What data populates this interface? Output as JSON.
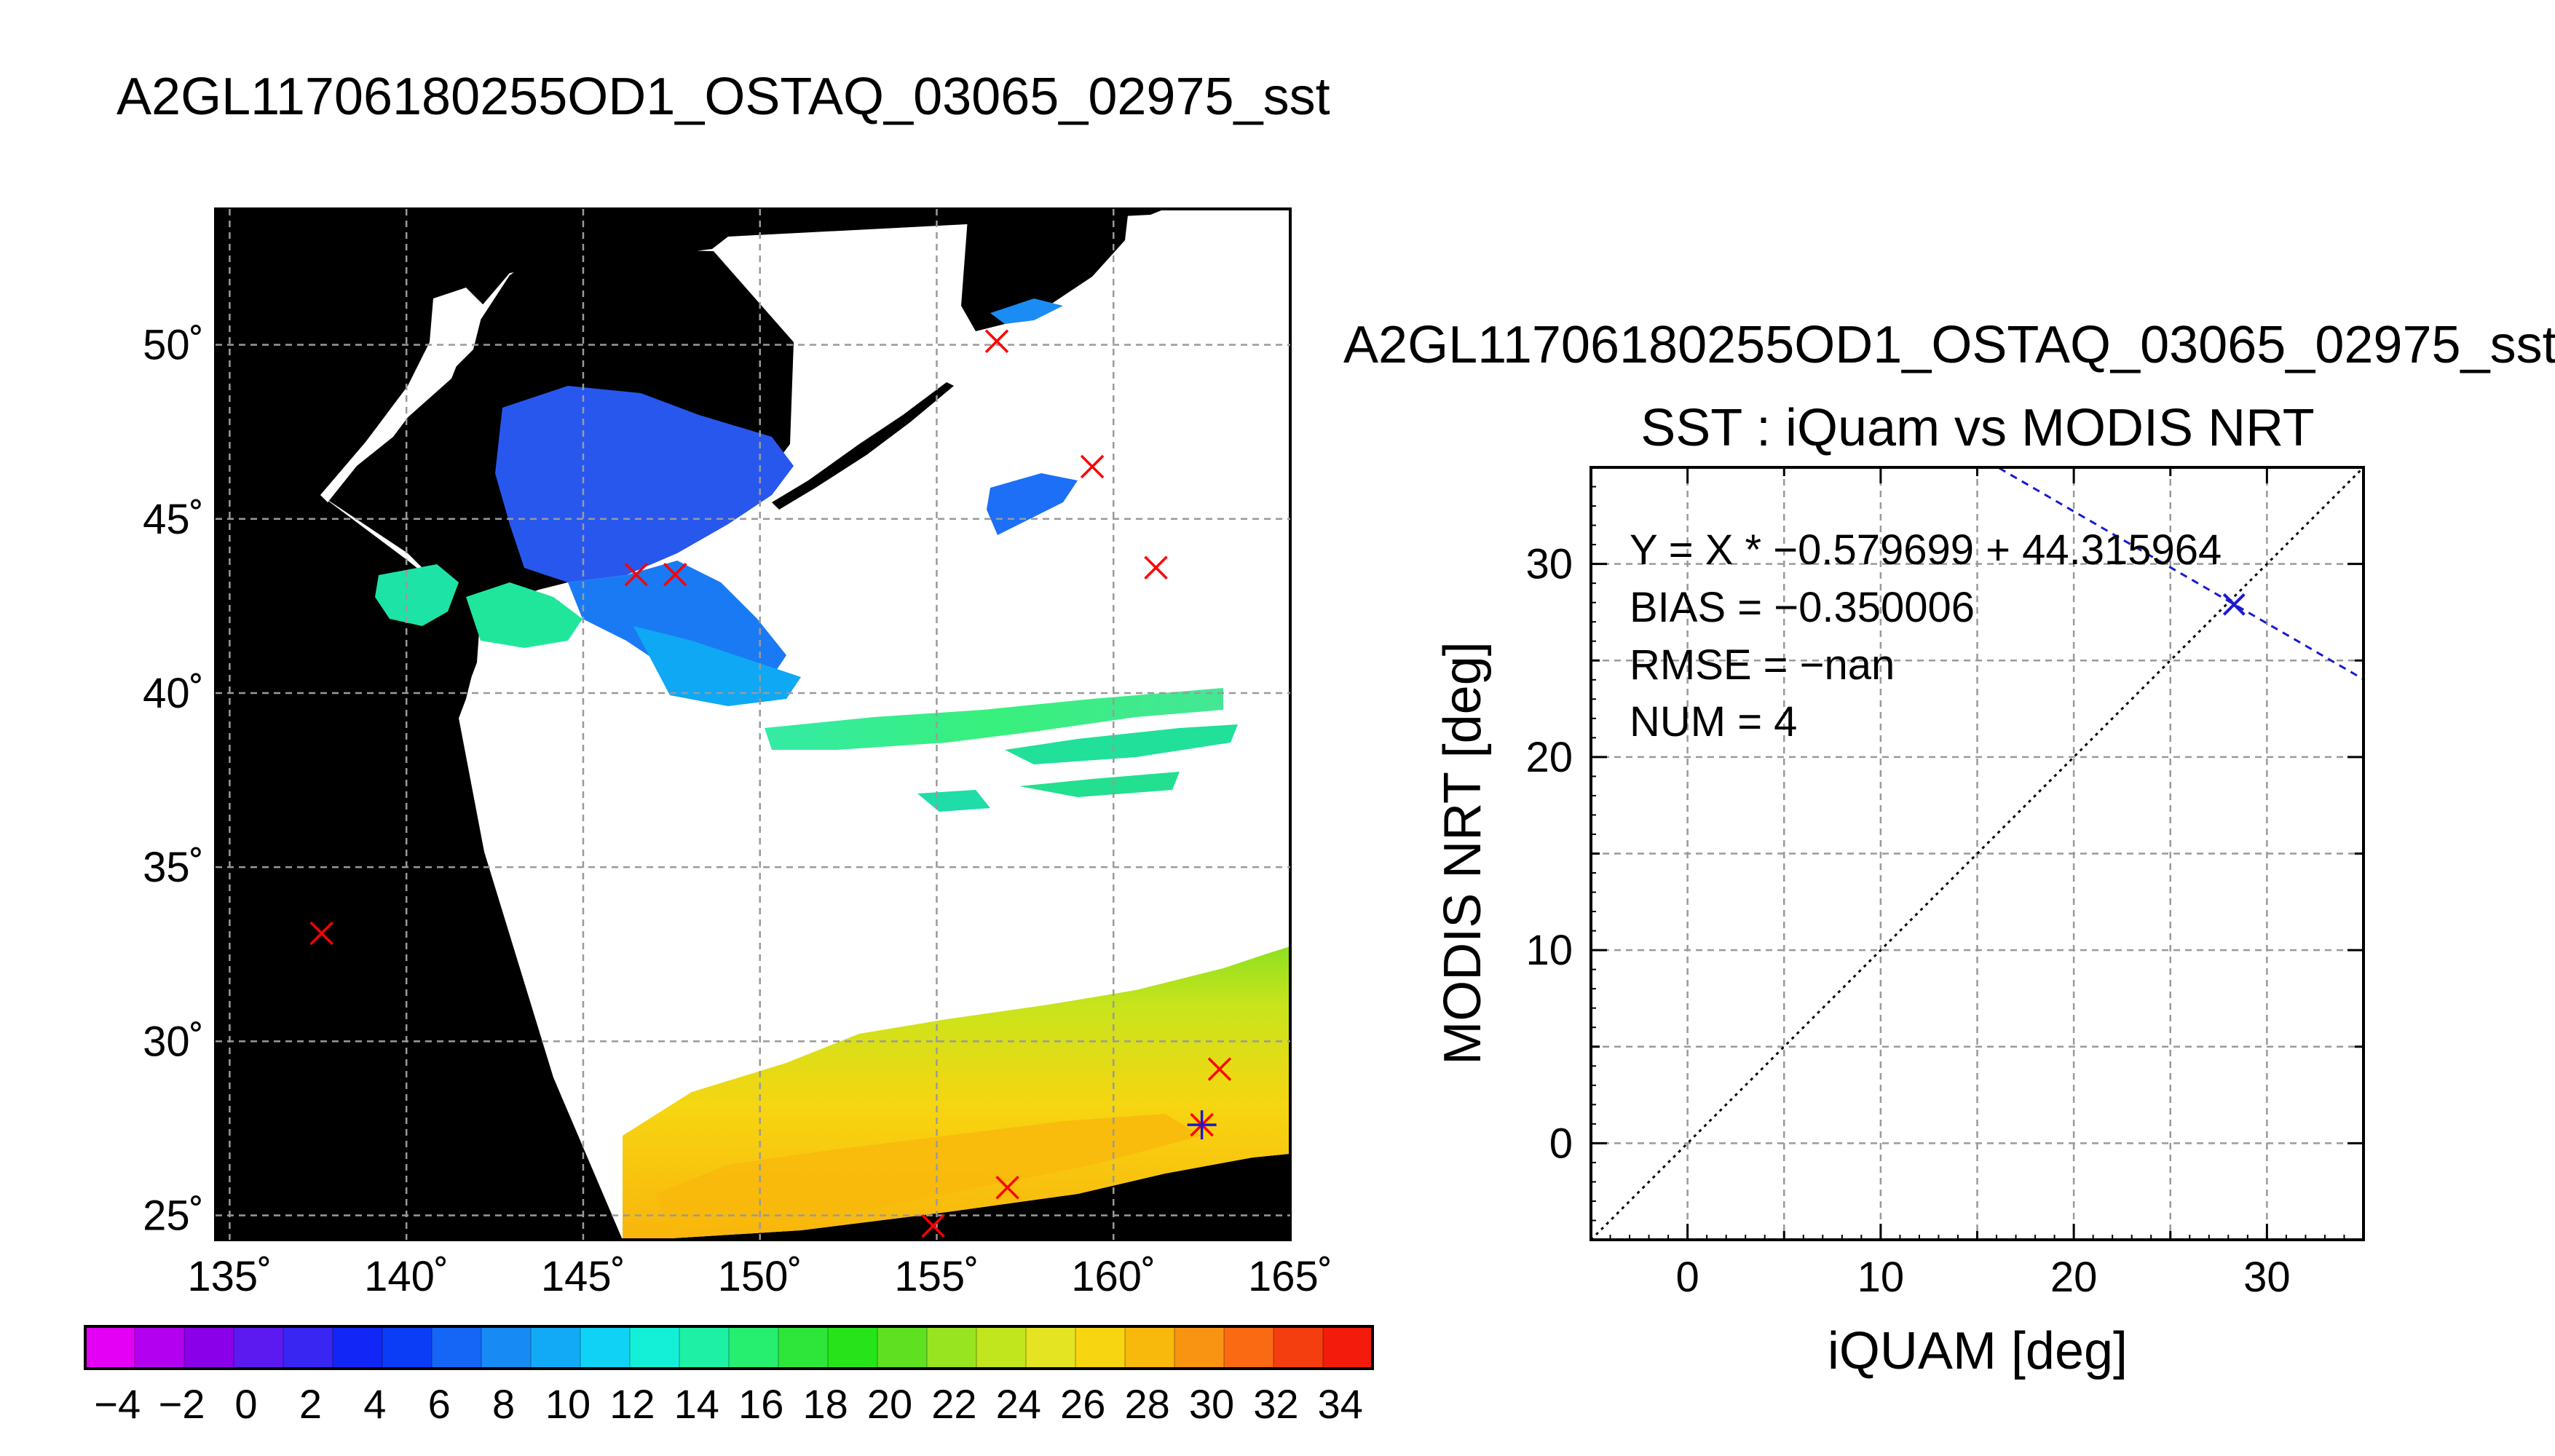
{
  "page": {
    "main_title": "A2GL11706180255OD1_OSTAQ_03065_02975_sst"
  },
  "map": {
    "lon_ticks": [
      "135˚",
      "140˚",
      "145˚",
      "150˚",
      "155˚",
      "160˚",
      "165˚"
    ],
    "lat_ticks": [
      "25˚",
      "30˚",
      "35˚",
      "40˚",
      "45˚",
      "50˚"
    ],
    "lon_values": [
      135,
      140,
      145,
      150,
      155,
      160,
      165
    ],
    "lat_values": [
      25,
      30,
      35,
      40,
      45,
      50
    ],
    "lon_range": [
      134.6,
      165.0
    ],
    "lat_range": [
      24.3,
      53.9
    ],
    "background_color": "#000000",
    "swath_color": "#ffffff",
    "marker_color": "#ff0000",
    "highlight_marker_color": "#1a1ad0",
    "markers": [
      {
        "lon": 137.6,
        "lat": 33.1
      },
      {
        "lon": 146.5,
        "lat": 43.4
      },
      {
        "lon": 147.6,
        "lat": 43.4
      },
      {
        "lon": 156.7,
        "lat": 50.1
      },
      {
        "lon": 159.4,
        "lat": 46.5
      },
      {
        "lon": 161.2,
        "lat": 43.6
      },
      {
        "lon": 163.0,
        "lat": 29.2
      },
      {
        "lon": 157.0,
        "lat": 25.8
      },
      {
        "lon": 154.9,
        "lat": 24.7
      }
    ],
    "highlight_marker": {
      "lon": 162.5,
      "lat": 27.6
    }
  },
  "colorbar": {
    "labels": [
      "−4",
      "−2",
      "0",
      "2",
      "4",
      "6",
      "8",
      "10",
      "12",
      "14",
      "16",
      "18",
      "20",
      "22",
      "24",
      "26",
      "28",
      "30",
      "32",
      "34"
    ],
    "min": -5,
    "max": 35,
    "colors": [
      "#e300f5",
      "#b300f0",
      "#8a00e8",
      "#5d1af0",
      "#3a26f2",
      "#1226f5",
      "#0b3df7",
      "#1565f6",
      "#188af4",
      "#12aaf6",
      "#0fd2f5",
      "#14f0d8",
      "#1ef0a6",
      "#26ee6f",
      "#2ee63a",
      "#27e41a",
      "#5fe020",
      "#99e421",
      "#c2e61d",
      "#e5e423",
      "#f7d511",
      "#f9b80c",
      "#f99412",
      "#f96a12",
      "#f53e0f",
      "#f31c0c"
    ]
  },
  "chart_data": {
    "type": "scatter",
    "title": "A2GL11706180255OD1_OSTAQ_03065_02975_sst",
    "subtitle": "SST : iQuam vs MODIS NRT",
    "xlabel": "iQUAM [deg]",
    "ylabel": "MODIS NRT [deg]",
    "xlim": [
      -5,
      35
    ],
    "ylim": [
      -5,
      35
    ],
    "xticks": [
      0,
      10,
      20,
      30
    ],
    "yticks": [
      0,
      10,
      20,
      30
    ],
    "x_tick_labels": [
      "0",
      "10",
      "20",
      "30"
    ],
    "y_tick_labels": [
      "0",
      "10",
      "20",
      "30"
    ],
    "grid": true,
    "points": [
      {
        "x": 28.3,
        "y": 27.9
      }
    ],
    "fit_line": {
      "slope": -0.579699,
      "intercept": 44.315964
    },
    "identity_line": true,
    "annotations": [
      "Y = X * −0.579699 + 44.315964",
      "BIAS = −0.350006",
      "RMSE = −nan",
      "NUM = 4"
    ],
    "point_color": "#1a1ad0",
    "fit_line_color": "#1a1ad0"
  }
}
